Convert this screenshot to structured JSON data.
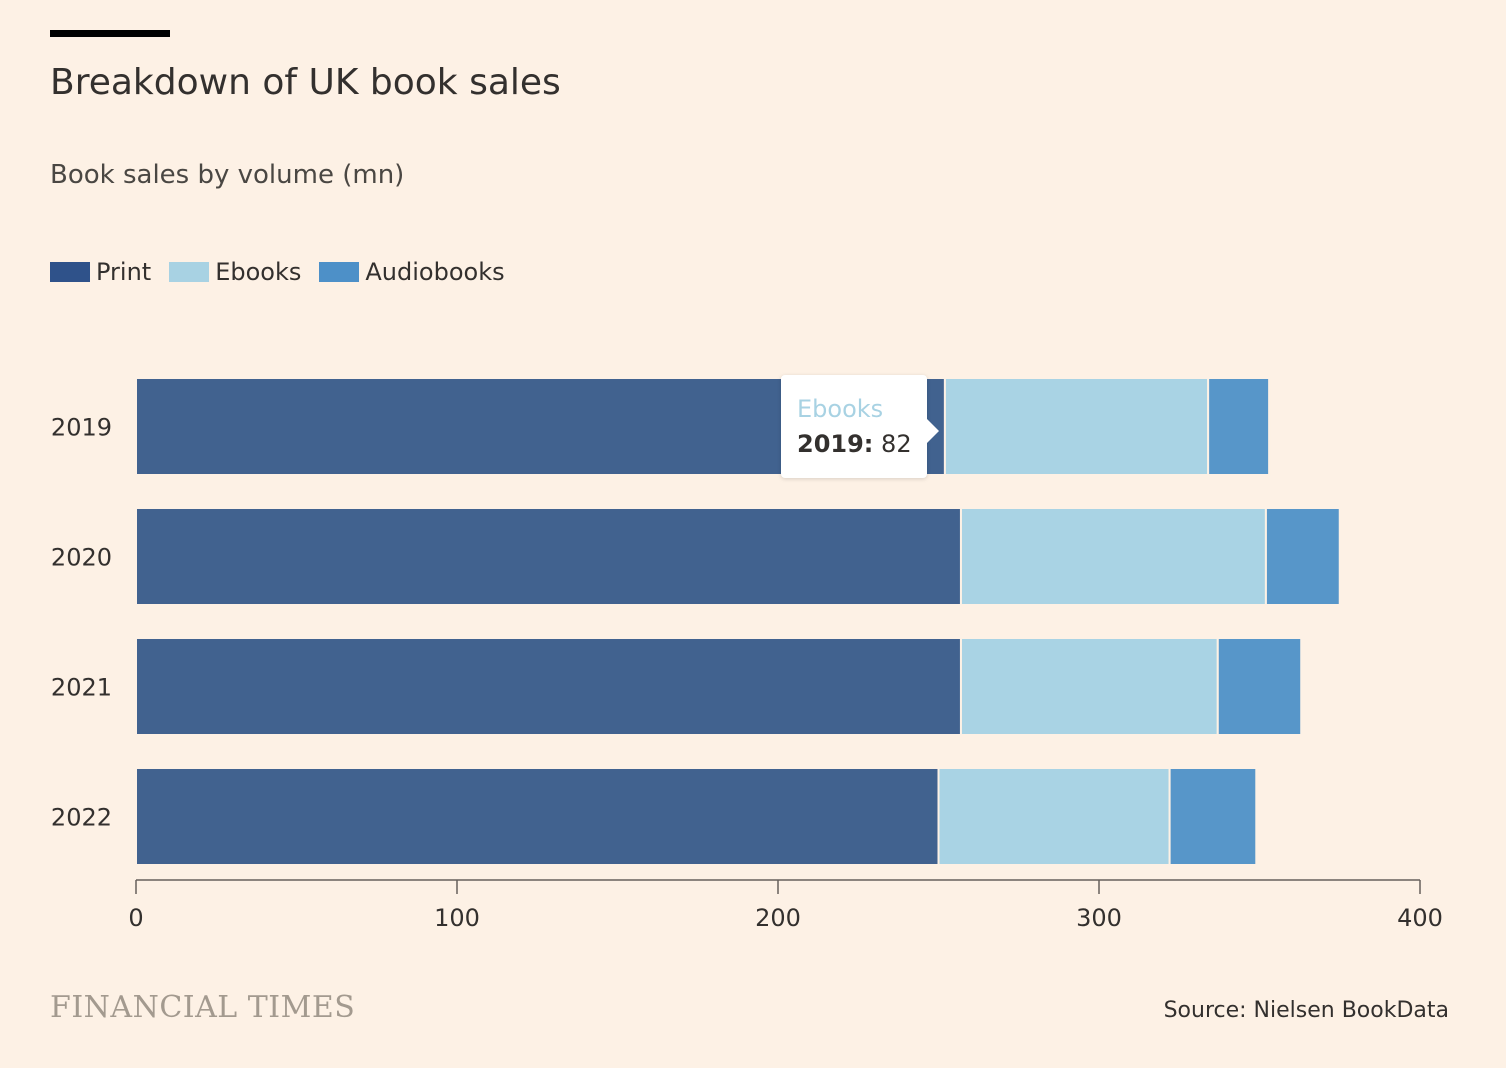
{
  "title": "Breakdown of UK book sales",
  "subtitle": "Book sales by volume (mn)",
  "legend": [
    {
      "label": "Print",
      "color": "#2f528a"
    },
    {
      "label": "Ebooks",
      "color": "#a8d2e3"
    },
    {
      "label": "Audiobooks",
      "color": "#4d90c8"
    }
  ],
  "tooltip": {
    "series": "Ebooks",
    "category": "2019:",
    "value": "82"
  },
  "footer": {
    "logo": "FINANCIAL TIMES",
    "source": "Source: Nielsen BookData"
  },
  "chart_data": {
    "type": "bar",
    "orientation": "horizontal",
    "stacked": true,
    "categories": [
      "2019",
      "2020",
      "2021",
      "2022"
    ],
    "series": [
      {
        "name": "Print",
        "color": "#41628f",
        "values": [
          252,
          257,
          257,
          250
        ]
      },
      {
        "name": "Ebooks",
        "color": "#a9d3e4",
        "values": [
          82,
          95,
          80,
          72
        ]
      },
      {
        "name": "Audiobooks",
        "color": "#5796c9",
        "values": [
          19,
          23,
          26,
          27
        ]
      }
    ],
    "xlim": [
      0,
      400
    ],
    "xticks": [
      "0",
      "100",
      "200",
      "300",
      "400"
    ],
    "grid": false,
    "legend_position": "top-left",
    "title": "",
    "xlabel": "",
    "ylabel": ""
  }
}
